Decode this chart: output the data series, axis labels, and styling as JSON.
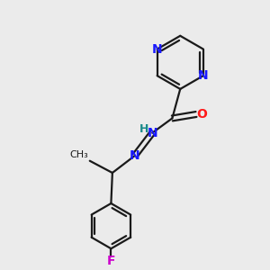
{
  "background_color": "#ebebeb",
  "bond_color": "#1a1a1a",
  "N_color": "#1919ff",
  "O_color": "#ff1919",
  "F_color": "#cc00cc",
  "H_color": "#1a8a8a",
  "line_width": 1.6,
  "dbo": 0.13,
  "figsize": [
    3.0,
    3.0
  ],
  "dpi": 100,
  "xlim": [
    0,
    10
  ],
  "ylim": [
    0,
    10
  ]
}
